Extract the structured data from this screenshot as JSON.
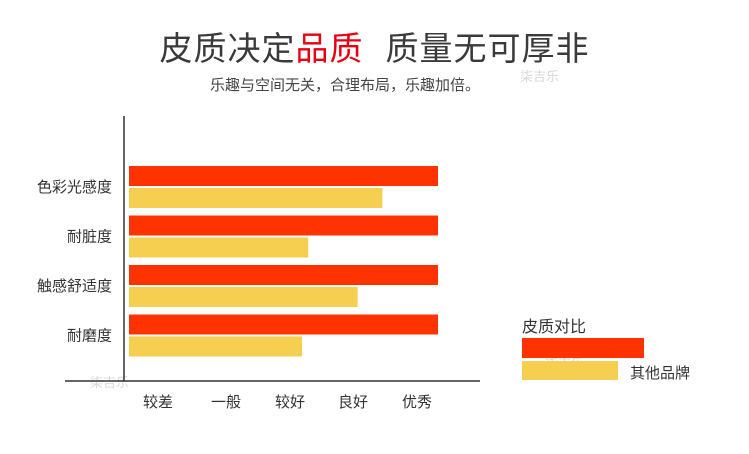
{
  "header": {
    "title_part1": "皮质决定",
    "title_highlight": "品质",
    "title_part2": "质量无可厚非",
    "subtitle": "乐趣与空间无关，合理布局，乐趣加倍。"
  },
  "watermark": "柒吉乐",
  "colors": {
    "ours": "#ff3300",
    "other": "#f6cf50",
    "highlight": "#e60012",
    "axis": "#333333"
  },
  "chart_data": {
    "type": "bar",
    "orientation": "horizontal",
    "categories": [
      "色彩光感度",
      "耐脏度",
      "触感舒适度",
      "耐磨度"
    ],
    "x_tick_labels": [
      "较差",
      "一般",
      "较好",
      "良好",
      "优秀"
    ],
    "xlim": [
      0,
      5
    ],
    "series": [
      {
        "values": [
          5,
          5,
          5,
          5
        ]
      },
      {
        "name": "其他品牌",
        "values": [
          4.1,
          2.9,
          3.7,
          2.8
        ]
      }
    ],
    "legend_title": "皮质对比",
    "legend": "right",
    "grid": false
  }
}
